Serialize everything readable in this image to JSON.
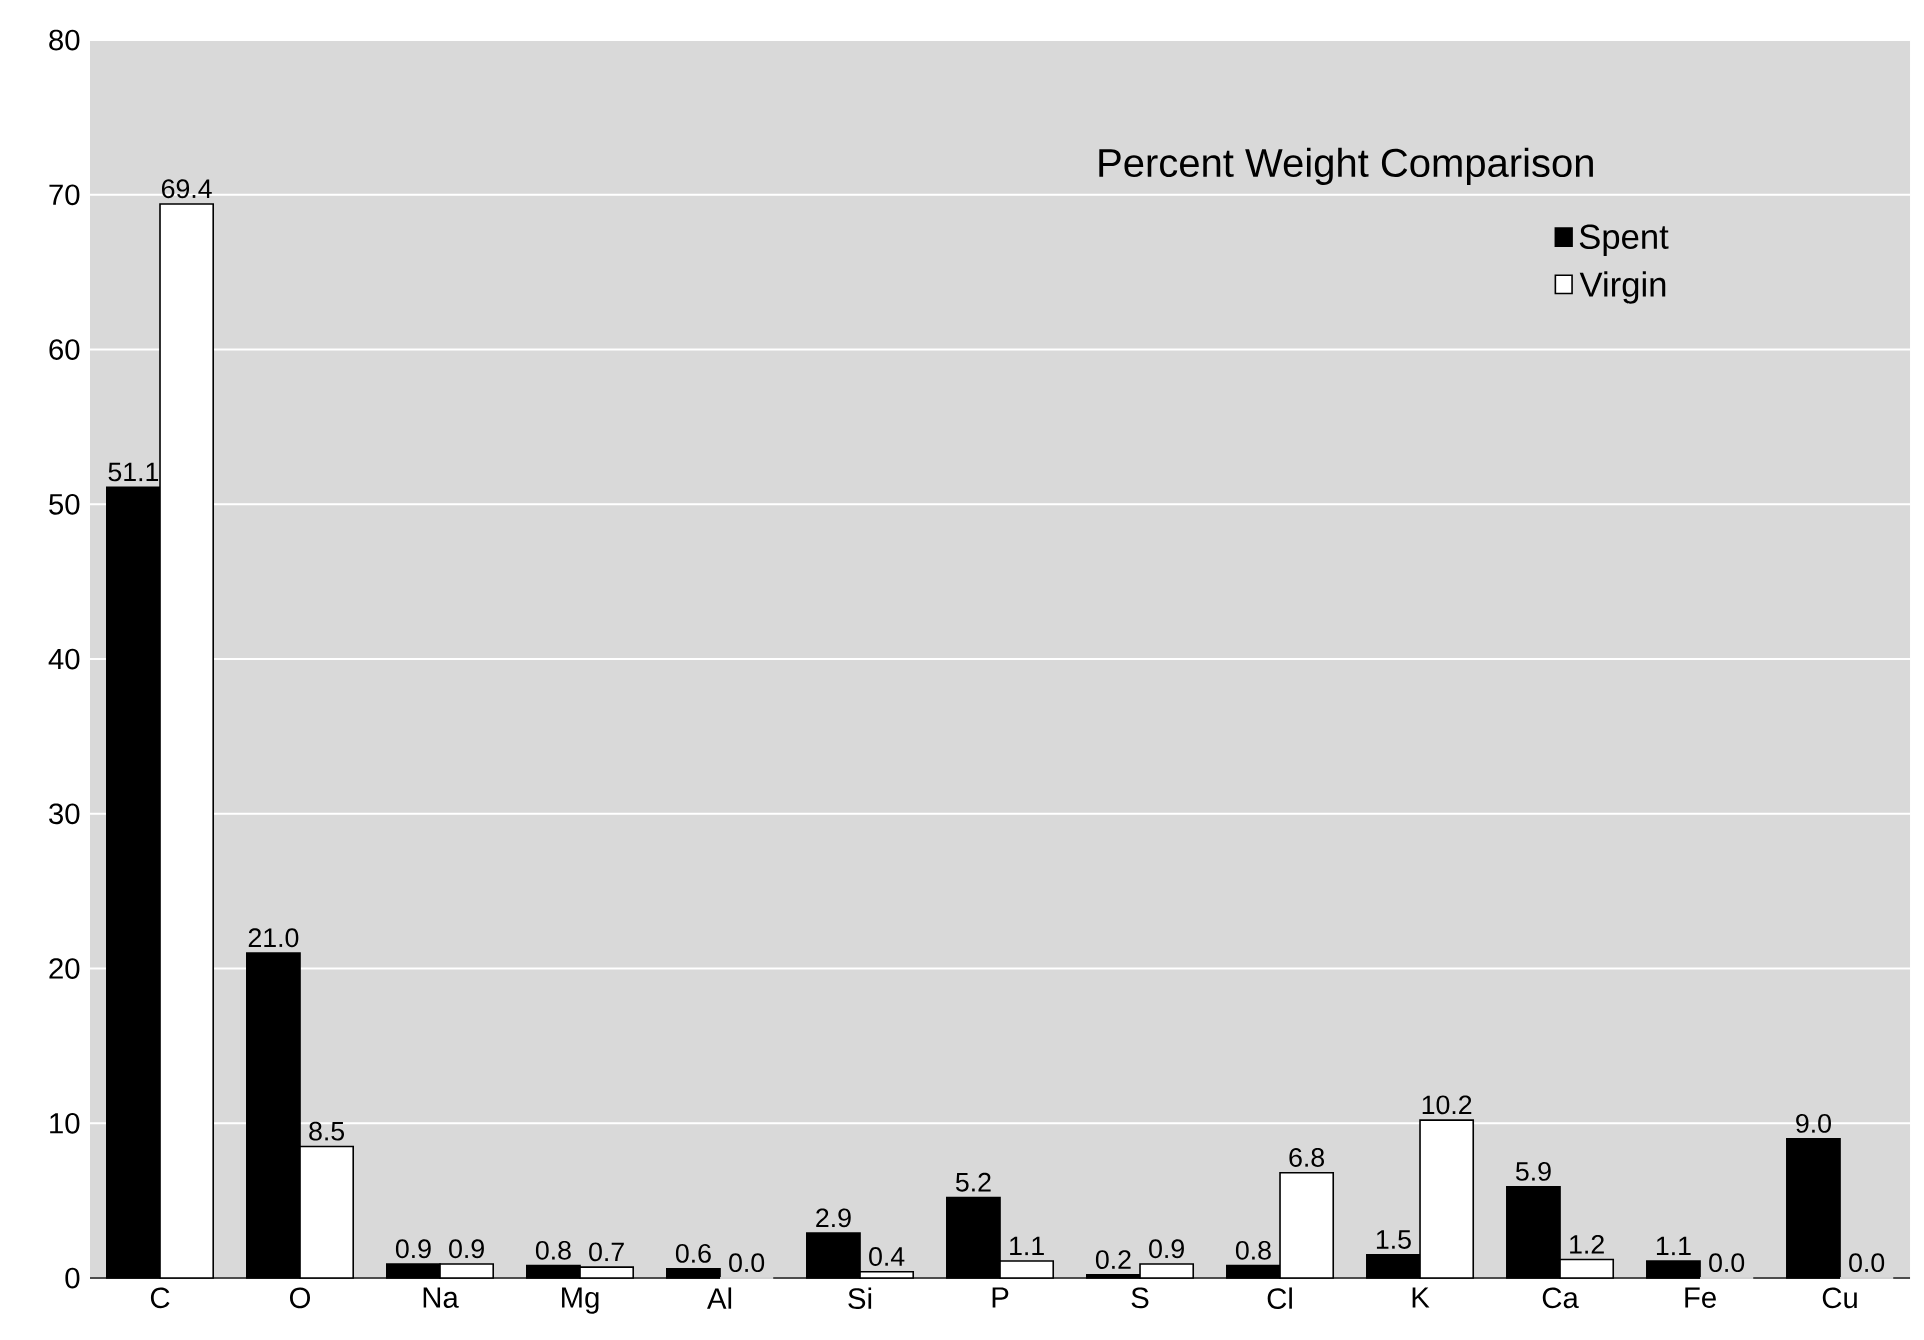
{
  "chart_data": {
    "type": "bar",
    "title": "Percent Weight Comparison",
    "categories": [
      "C",
      "O",
      "Na",
      "Mg",
      "Al",
      "Si",
      "P",
      "S",
      "Cl",
      "K",
      "Ca",
      "Fe",
      "Cu"
    ],
    "series": [
      {
        "name": "Spent",
        "color": "#000000",
        "values": [
          51.1,
          21.0,
          0.9,
          0.8,
          0.6,
          2.9,
          5.2,
          0.2,
          0.8,
          1.5,
          5.9,
          1.1,
          9.0
        ],
        "value_labels": [
          "51.1",
          "21.0",
          "0.9",
          "0.8",
          "0.6",
          "2.9",
          "5.2",
          "0.2",
          "0.8",
          "1.5",
          "5.9",
          "1.1",
          "9.0"
        ]
      },
      {
        "name": "Virgin",
        "color": "#ffffff",
        "values": [
          69.4,
          8.5,
          0.9,
          0.7,
          0.0,
          0.4,
          1.1,
          0.9,
          6.8,
          10.2,
          1.2,
          0.0,
          0.0
        ],
        "value_labels": [
          "69.4",
          "8.5",
          "0.9",
          "0.7",
          "0.0",
          "0.4",
          "1.1",
          "0.9",
          "6.8",
          "10.2",
          "1.2",
          "0.0",
          "0.0"
        ]
      }
    ],
    "ylim": [
      0,
      80
    ],
    "yticks": [
      0,
      10,
      20,
      30,
      40,
      50,
      60,
      70,
      80
    ],
    "grid": "y",
    "legend": "top right"
  }
}
